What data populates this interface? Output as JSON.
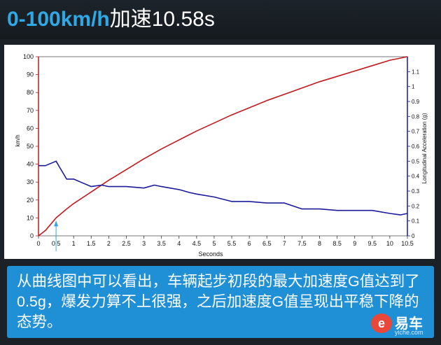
{
  "header": {
    "title_main": "0-100km/h",
    "title_rest": "加速10.58s"
  },
  "caption": "从曲线图中可以看出，车辆起步初段的最大加速度G值达到了0.5g，爆发力算不上很强，之后加速度G值呈现出平稳下降的态势。",
  "logo": {
    "brand": "易车",
    "url": "yiche.com",
    "mark": "e"
  },
  "colors": {
    "background": "#1b2127",
    "accent": "#2fa9e6",
    "caption_bg": "#1f8fd6",
    "speed_line": "#c2191f",
    "accel_line": "#1a1a9a"
  },
  "chart_data": {
    "type": "line",
    "xlabel": "Seconds",
    "ylabel_left": "km/h",
    "ylabel_right": "Longitudinal Acceleration (g)",
    "xlim": [
      0,
      10.5
    ],
    "ylim_left": [
      0,
      100
    ],
    "ylim_right": [
      0,
      1.2
    ],
    "x_ticks": [
      "0",
      "0.5",
      "1",
      "1.5",
      "2",
      "2.5",
      "3",
      "3.5",
      "4",
      "4.5",
      "5",
      "5.5",
      "6",
      "6.5",
      "7",
      "7.5",
      "8",
      "8.5",
      "9",
      "9.5",
      "10",
      "10.5"
    ],
    "y_left_ticks": [
      "0",
      "10",
      "20",
      "30",
      "40",
      "50",
      "60",
      "70",
      "80",
      "90",
      "100"
    ],
    "y_right_ticks": [
      "0",
      "0.1",
      "0.2",
      "0.3",
      "0.4",
      "0.5",
      "0.6",
      "0.7",
      "0.8",
      "0.9",
      "1",
      "1.1"
    ],
    "grid": false,
    "marker_x": 0.5,
    "series": [
      {
        "axis": "left",
        "color": "#c2191f",
        "x": [
          0,
          0.2,
          0.5,
          0.8,
          1.0,
          1.5,
          2.0,
          2.5,
          3.0,
          3.5,
          4.0,
          4.5,
          5.0,
          5.5,
          6.0,
          6.5,
          7.0,
          7.5,
          8.0,
          8.5,
          9.0,
          9.5,
          10.0,
          10.5
        ],
        "values": [
          0,
          3,
          10,
          15,
          18,
          24.5,
          31,
          37,
          43,
          48.5,
          53.5,
          58.5,
          63,
          67.5,
          71.5,
          75.5,
          79,
          82.5,
          86,
          89,
          92,
          95,
          98,
          100
        ]
      },
      {
        "axis": "right",
        "color": "#1a1a9a",
        "x": [
          0,
          0.2,
          0.5,
          0.6,
          0.8,
          1.0,
          1.3,
          1.5,
          1.8,
          2.0,
          2.5,
          3.0,
          3.3,
          3.5,
          4.0,
          4.3,
          4.5,
          5.0,
          5.5,
          6.0,
          6.5,
          7.0,
          7.5,
          8.0,
          8.5,
          9.0,
          9.5,
          10.0,
          10.3,
          10.5
        ],
        "values": [
          0.47,
          0.47,
          0.5,
          0.46,
          0.38,
          0.38,
          0.35,
          0.33,
          0.34,
          0.33,
          0.33,
          0.32,
          0.34,
          0.33,
          0.31,
          0.29,
          0.28,
          0.26,
          0.23,
          0.23,
          0.22,
          0.22,
          0.18,
          0.18,
          0.17,
          0.17,
          0.17,
          0.15,
          0.14,
          0.15
        ]
      }
    ]
  }
}
